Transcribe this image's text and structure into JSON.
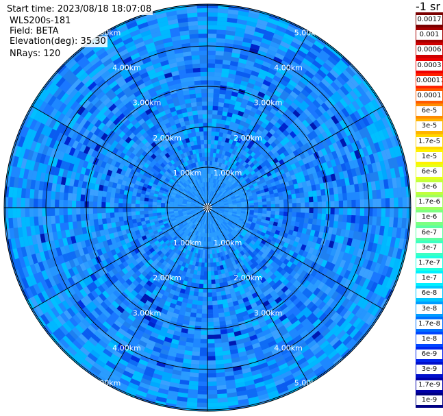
{
  "info": {
    "start_time": "Start time: 2023/08/18 18:07:08",
    "instrument": "WLS200s-181",
    "field": "Field: BETA",
    "elevation": "Elevation(deg): 35.30",
    "nrays": "NRays: 120"
  },
  "colorbar": {
    "unit": "-1 sr",
    "labels": [
      "0.0017",
      "0.001",
      "0.0006",
      "0.0003",
      "0.00017",
      "0.0001",
      "6e-5",
      "3e-5",
      "1.7e-5",
      "1e-5",
      "6e-6",
      "3e-6",
      "1.7e-6",
      "1e-6",
      "6e-7",
      "3e-7",
      "1.7e-7",
      "1e-7",
      "6e-8",
      "3e-8",
      "1.7e-8",
      "1e-8",
      "6e-9",
      "3e-9",
      "1.7e-9",
      "1e-9"
    ],
    "colors": [
      "#7a0000",
      "#a50000",
      "#cf0000",
      "#ef0000",
      "#ff2200",
      "#ff5a00",
      "#ff8c00",
      "#ffb400",
      "#ffd800",
      "#fff200",
      "#e6ff1a",
      "#c2ff3c",
      "#a0ff5e",
      "#7cff82",
      "#5cffa2",
      "#3cffc2",
      "#1effe0",
      "#00f0ff",
      "#00c8ff",
      "#009cff",
      "#0070ff",
      "#0046ff",
      "#0024ee",
      "#0010cc",
      "#0000a8",
      "#000082"
    ]
  },
  "chart_data": {
    "type": "heatmap",
    "projection": "polar (PPI scan)",
    "field": "BETA",
    "title": "",
    "range_rings_km": [
      1,
      2,
      3,
      4,
      5
    ],
    "range_ring_labels": [
      "1.00km",
      "2.00km",
      "3.00km",
      "4.00km",
      "5.00km"
    ],
    "max_range_km": 5.0,
    "azimuth_lines_deg": [
      0,
      30,
      60,
      90,
      120,
      150,
      180,
      210,
      240,
      270,
      300,
      330
    ],
    "nrays": 120,
    "value_range": [
      1e-09,
      0.0017
    ],
    "dominant_value_range": [
      1e-08,
      6e-08
    ]
  }
}
